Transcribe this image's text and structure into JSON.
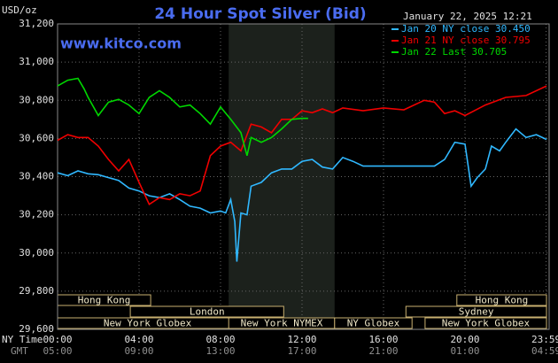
{
  "chart_data": {
    "type": "line",
    "title": "24 Hour Spot Silver (Bid)",
    "y_label": "USD/oz",
    "timestamp": "January 22, 2025 12:21",
    "website": "www.kitco.com",
    "x_label": "NY Time",
    "x2_label": "GMT",
    "xlim": [
      0,
      24
    ],
    "xticks": [
      {
        "value": 0,
        "label": "00:00"
      },
      {
        "value": 4,
        "label": "04:00"
      },
      {
        "value": 8,
        "label": "08:00"
      },
      {
        "value": 12,
        "label": "12:00"
      },
      {
        "value": 16,
        "label": "16:00"
      },
      {
        "value": 20,
        "label": "20:00"
      },
      {
        "value": 23.98,
        "label": "23:59"
      }
    ],
    "gmt_labels": [
      "05:00",
      "09:00",
      "13:00",
      "17:00",
      "21:00",
      "01:00",
      "04:59"
    ],
    "ylim": [
      29600,
      31200
    ],
    "yticks": [
      {
        "value": 29600,
        "label": "29,600"
      },
      {
        "value": 29800,
        "label": "29,800"
      },
      {
        "value": 30000,
        "label": "30,000"
      },
      {
        "value": 30200,
        "label": "30,200"
      },
      {
        "value": 30400,
        "label": "30,400"
      },
      {
        "value": 30600,
        "label": "30,600"
      },
      {
        "value": 30800,
        "label": "30,800"
      },
      {
        "value": 31000,
        "label": "31,000"
      },
      {
        "value": 31200,
        "label": "31,200"
      }
    ],
    "grid": true,
    "shaded": [
      8.4,
      13.6
    ],
    "sessions": [
      {
        "name": "Hong Kong",
        "row": 0,
        "start": 0,
        "end": 4.57
      },
      {
        "name": "Hong Kong",
        "row": 0,
        "start": 19.6,
        "end": 24
      },
      {
        "name": "London",
        "row": 1,
        "start": 3.57,
        "end": 11.1
      },
      {
        "name": "Sydney",
        "row": 1,
        "start": 17.1,
        "end": 24
      },
      {
        "name": "New York Globex",
        "row": 2,
        "start": 0,
        "end": 8.83
      },
      {
        "name": "New York NYMEX",
        "row": 2,
        "start": 8.4,
        "end": 13.6
      },
      {
        "name": "NY Globex",
        "row": 2,
        "start": 13.6,
        "end": 17.4
      },
      {
        "name": "New York Globex",
        "row": 2,
        "start": 18.04,
        "end": 24
      }
    ],
    "series": [
      {
        "name": "Jan 20 NY close 30.450",
        "color": "#30b8ff",
        "x": [
          0,
          0.5,
          1,
          1.5,
          2,
          2.5,
          3,
          3.5,
          4,
          4.5,
          5,
          5.5,
          6,
          6.5,
          7,
          7.5,
          8,
          8.25,
          8.5,
          8.7,
          8.8,
          9,
          9.3,
          9.5,
          10,
          10.5,
          11,
          11.5,
          12,
          12.5,
          13,
          13.5,
          14,
          14.5,
          15,
          18.5,
          19,
          19.5,
          20,
          20.3,
          20.6,
          21,
          21.3,
          21.7,
          22,
          22.5,
          23,
          23.5,
          24
        ],
        "values": [
          30420,
          30405,
          30430,
          30415,
          30410,
          30395,
          30380,
          30340,
          30325,
          30300,
          30290,
          30310,
          30280,
          30245,
          30235,
          30210,
          30220,
          30210,
          30280,
          30165,
          29955,
          30210,
          30200,
          30350,
          30370,
          30420,
          30440,
          30440,
          30480,
          30490,
          30450,
          30440,
          30500,
          30480,
          30455,
          30455,
          30490,
          30580,
          30570,
          30350,
          30395,
          30440,
          30560,
          30535,
          30580,
          30650,
          30605,
          30620,
          30595
        ]
      },
      {
        "name": "Jan 21 NY close 30.795",
        "color": "#f00000",
        "x": [
          0,
          0.5,
          1,
          1.5,
          2,
          2.5,
          3,
          3.5,
          4,
          4.5,
          5,
          5.5,
          6,
          6.5,
          7,
          7.5,
          8,
          8.5,
          9,
          9.5,
          10,
          10.5,
          11,
          11.5,
          12,
          12.5,
          13,
          13.5,
          14,
          15,
          16,
          17,
          18,
          18.5,
          19,
          19.5,
          20,
          21,
          22,
          23,
          24
        ],
        "values": [
          30590,
          30620,
          30605,
          30605,
          30560,
          30490,
          30430,
          30490,
          30370,
          30255,
          30290,
          30280,
          30310,
          30300,
          30325,
          30510,
          30560,
          30580,
          30535,
          30675,
          30660,
          30630,
          30700,
          30700,
          30745,
          30735,
          30755,
          30735,
          30760,
          30745,
          30760,
          30750,
          30800,
          30790,
          30730,
          30745,
          30720,
          30775,
          30815,
          30825,
          30875
        ]
      },
      {
        "name": "Jan 22 Last 30.705",
        "color": "#00d800",
        "x": [
          0,
          0.5,
          1,
          1.3,
          1.5,
          2,
          2.5,
          3,
          3.5,
          4,
          4.5,
          5,
          5.5,
          6,
          6.5,
          7,
          7.5,
          8,
          8.5,
          9,
          9.3,
          9.5,
          10,
          10.5,
          11,
          11.5,
          12,
          12.3
        ],
        "values": [
          30875,
          30905,
          30915,
          30860,
          30815,
          30720,
          30790,
          30805,
          30775,
          30730,
          30815,
          30850,
          30815,
          30765,
          30775,
          30730,
          30675,
          30765,
          30700,
          30630,
          30510,
          30605,
          30580,
          30605,
          30650,
          30700,
          30705,
          30705
        ]
      }
    ]
  }
}
